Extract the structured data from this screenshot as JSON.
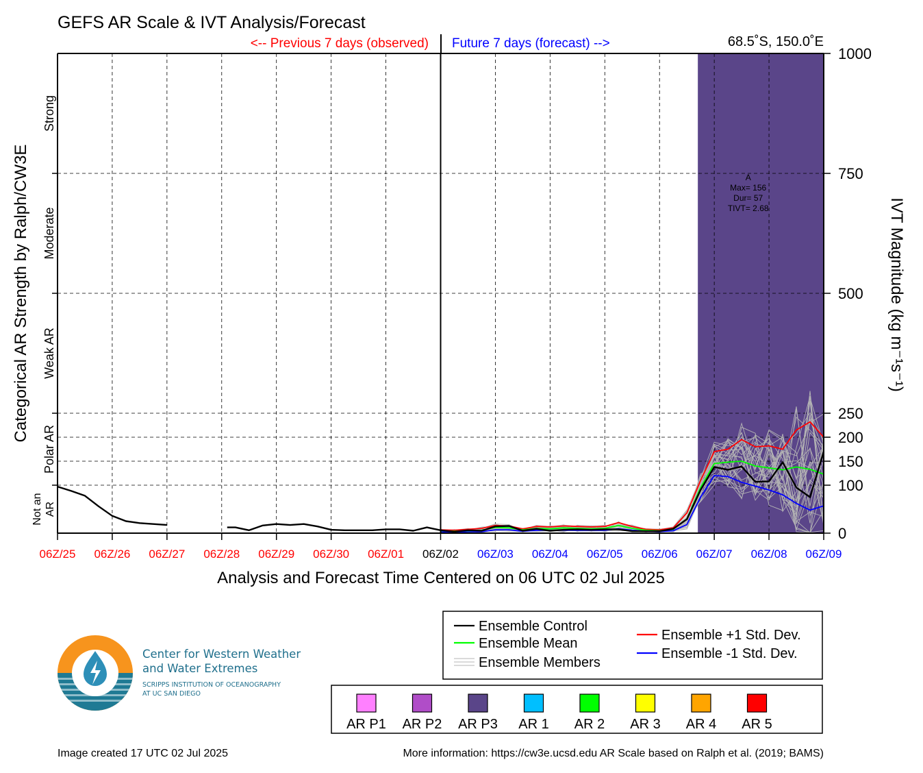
{
  "chart_data": {
    "type": "line",
    "title": "GEFS AR Scale & IVT Analysis/Forecast",
    "header_left": "<-- Previous 7 days (observed)",
    "header_right": "Future 7 days (forecast) -->",
    "location": "68.5˚S, 150.0˚E",
    "xlabel": "Analysis and Forecast Time Centered on 06 UTC 02 Jul 2025",
    "ylabel_left": "Categorical AR Strength by Ralph/CW3E",
    "ylabel_right": "IVT Magnitude (kg m⁻¹s⁻¹)",
    "ylim": [
      0,
      1000
    ],
    "xlim": [
      0,
      14
    ],
    "x_ticks": [
      {
        "x": 0,
        "label": "06Z/25",
        "color": "#ff0000"
      },
      {
        "x": 1,
        "label": "06Z/26",
        "color": "#ff0000"
      },
      {
        "x": 2,
        "label": "06Z/27",
        "color": "#ff0000"
      },
      {
        "x": 3,
        "label": "06Z/28",
        "color": "#ff0000"
      },
      {
        "x": 4,
        "label": "06Z/29",
        "color": "#ff0000"
      },
      {
        "x": 5,
        "label": "06Z/30",
        "color": "#ff0000"
      },
      {
        "x": 6,
        "label": "06Z/01",
        "color": "#ff0000"
      },
      {
        "x": 7,
        "label": "06Z/02",
        "color": "#000000"
      },
      {
        "x": 8,
        "label": "06Z/03",
        "color": "#0000ff"
      },
      {
        "x": 9,
        "label": "06Z/04",
        "color": "#0000ff"
      },
      {
        "x": 10,
        "label": "06Z/05",
        "color": "#0000ff"
      },
      {
        "x": 11,
        "label": "06Z/06",
        "color": "#0000ff"
      },
      {
        "x": 12,
        "label": "06Z/07",
        "color": "#0000ff"
      },
      {
        "x": 13,
        "label": "06Z/08",
        "color": "#0000ff"
      },
      {
        "x": 14,
        "label": "06Z/09",
        "color": "#0000ff"
      }
    ],
    "y_ticks": [
      0,
      100,
      150,
      200,
      250,
      500,
      750,
      1000
    ],
    "categories_left": [
      {
        "label": "Strong",
        "y0": 750,
        "y1": 1000
      },
      {
        "label": "Moderate",
        "y0": 500,
        "y1": 750
      },
      {
        "label": "Weak AR",
        "y0": 250,
        "y1": 500
      },
      {
        "label": "Polar AR",
        "y0": 100,
        "y1": 250
      },
      {
        "label": "Not an\nAR",
        "y0": 0,
        "y1": 100
      }
    ],
    "grid": true,
    "now_x": 7,
    "ar_event": {
      "x0": 11.7,
      "x1": 14,
      "color": "#5a4589",
      "label_lines": [
        "A",
        "Max= 156",
        "Dur= 57",
        "TIVT= 2.68"
      ]
    },
    "series": [
      {
        "name": "Ensemble Control",
        "color": "#000000",
        "x": [
          0,
          0.25,
          0.5,
          0.75,
          1.0,
          1.25,
          1.5,
          1.75,
          2.0
        ],
        "y": [
          97,
          88,
          78,
          56,
          36,
          25,
          21,
          19,
          17
        ]
      },
      {
        "name": "Ensemble Control",
        "color": "#000000",
        "x": [
          3.1,
          3.25,
          3.5,
          3.75,
          4.0,
          4.25,
          4.5,
          4.75,
          5.0,
          5.25,
          5.5,
          5.75,
          6.0,
          6.25,
          6.5,
          6.75,
          7.0,
          7.25,
          7.5,
          7.75,
          8.0,
          8.25,
          8.5,
          8.75,
          9.0,
          9.25,
          9.5,
          9.75,
          10.0,
          10.25,
          10.5,
          10.75,
          11.0,
          11.25,
          11.5,
          11.75,
          12.0,
          12.25,
          12.5,
          12.75,
          13.0,
          13.25,
          13.5,
          13.75,
          14.0
        ],
        "y": [
          12,
          12,
          6,
          16,
          19,
          17,
          19,
          14,
          7,
          6,
          6,
          6,
          8,
          8,
          5,
          12,
          6,
          3,
          6,
          5,
          14,
          15,
          5,
          9,
          5,
          7,
          8,
          7,
          8,
          8,
          4,
          4,
          4,
          9,
          29,
          90,
          138,
          132,
          139,
          107,
          108,
          148,
          95,
          75,
          170
        ]
      },
      {
        "name": "Ensemble Mean",
        "color": "#00ff00",
        "x": [
          7.0,
          7.25,
          7.5,
          7.75,
          8.0,
          8.25,
          8.5,
          8.75,
          9.0,
          9.25,
          9.5,
          9.75,
          10.0,
          10.25,
          10.5,
          10.75,
          11.0,
          11.25,
          11.5,
          11.75,
          12.0,
          12.25,
          12.5,
          12.75,
          13.0,
          13.25,
          13.5,
          13.75,
          14.0
        ],
        "y": [
          5,
          4,
          5,
          6,
          12,
          11,
          7,
          10,
          9,
          11,
          10,
          9,
          10,
          16,
          10,
          6,
          5,
          8,
          30,
          95,
          145,
          148,
          150,
          140,
          136,
          132,
          138,
          133,
          123
        ]
      },
      {
        "name": "Ensemble +1 Std. Dev.",
        "color": "#ff0000",
        "x": [
          7.0,
          7.25,
          7.5,
          7.75,
          8.0,
          8.25,
          8.5,
          8.75,
          9.0,
          9.25,
          9.5,
          9.75,
          10.0,
          10.25,
          10.5,
          10.75,
          11.0,
          11.25,
          11.5,
          11.75,
          12.0,
          12.25,
          12.5,
          12.75,
          13.0,
          13.25,
          13.5,
          13.75,
          14.0
        ],
        "y": [
          7,
          6,
          8,
          10,
          16,
          15,
          9,
          14,
          13,
          15,
          14,
          13,
          14,
          22,
          14,
          8,
          7,
          11,
          42,
          110,
          170,
          175,
          195,
          180,
          182,
          175,
          215,
          232,
          200
        ]
      },
      {
        "name": "Ensemble -1 Std. Dev.",
        "color": "#0000ff",
        "x": [
          7.0,
          7.25,
          7.5,
          7.75,
          8.0,
          8.25,
          8.5,
          8.75,
          9.0,
          9.25,
          9.5,
          9.75,
          10.0,
          10.25,
          10.5,
          10.75,
          11.0,
          11.25,
          11.5,
          11.75,
          12.0,
          12.25,
          12.5,
          12.75,
          13.0,
          13.25,
          13.5,
          13.75,
          14.0
        ],
        "y": [
          3,
          2,
          3,
          3,
          7,
          7,
          4,
          6,
          6,
          6,
          6,
          6,
          6,
          9,
          6,
          4,
          3,
          5,
          18,
          75,
          120,
          118,
          106,
          98,
          90,
          80,
          62,
          48,
          57
        ]
      }
    ],
    "legend": {
      "items": [
        {
          "label": "Ensemble Control",
          "color": "#000000"
        },
        {
          "label": "Ensemble Mean",
          "color": "#00ff00"
        },
        {
          "label": "Ensemble Members",
          "color": "#b4b4b4"
        },
        {
          "label": "Ensemble +1 Std. Dev.",
          "color": "#ff0000"
        },
        {
          "label": "Ensemble -1 Std. Dev.",
          "color": "#0000ff"
        }
      ]
    },
    "color_key": [
      {
        "label": "AR P1",
        "color": "#ff80ff"
      },
      {
        "label": "AR P2",
        "color": "#b04dc8"
      },
      {
        "label": "AR P3",
        "color": "#5a4589"
      },
      {
        "label": "AR 1",
        "color": "#00bfff"
      },
      {
        "label": "AR 2",
        "color": "#00ff00"
      },
      {
        "label": "AR 3",
        "color": "#ffff00"
      },
      {
        "label": "AR 4",
        "color": "#ffa500"
      },
      {
        "label": "AR 5",
        "color": "#ff0000"
      }
    ]
  },
  "footer": {
    "created": "Image created 17 UTC 02 Jul 2025",
    "more_info": "More information: https://cw3e.ucsd.edu AR Scale based on Ralph et al. (2019; BAMS)"
  },
  "logo": {
    "line1": "Center for Western Weather",
    "line2": "and Water Extremes",
    "line3": "SCRIPPS INSTITUTION OF OCEANOGRAPHY",
    "line4": "AT UC SAN DIEGO",
    "accent_orange": "#f7941d",
    "accent_teal": "#1f7a94"
  }
}
